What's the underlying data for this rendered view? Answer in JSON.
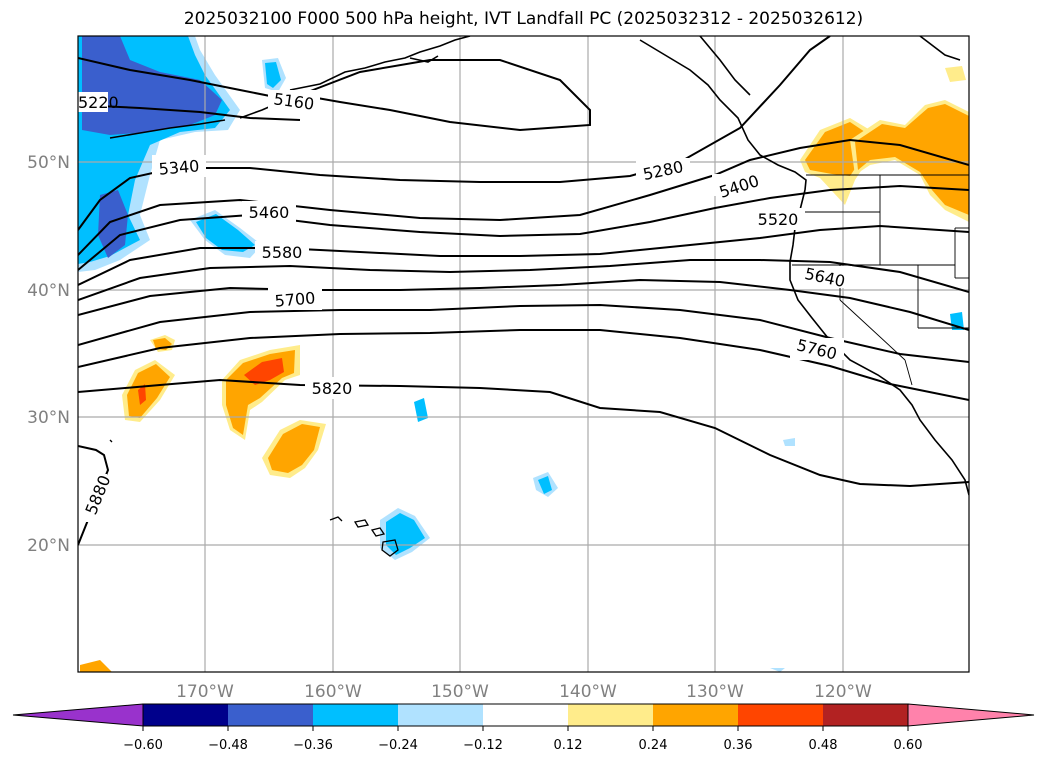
{
  "title": "2025032100 F000 500 hPa height, IVT Landfall PC (2025032312 - 2025032612)",
  "map": {
    "lat_labels": [
      "50°N",
      "40°N",
      "30°N",
      "20°N"
    ],
    "lon_labels": [
      "170°W",
      "160°W",
      "150°W",
      "140°W",
      "130°W",
      "120°W"
    ],
    "contour_labels": [
      "5160",
      "5220",
      "5280",
      "5340",
      "5400",
      "5460",
      "5520",
      "5580",
      "5640",
      "5700",
      "5760",
      "5820",
      "5880"
    ]
  },
  "colorbar": {
    "ticks": [
      "−0.60",
      "−0.48",
      "−0.36",
      "−0.24",
      "−0.12",
      "0.12",
      "0.24",
      "0.36",
      "0.48",
      "0.60"
    ],
    "colors": [
      "#9932cc",
      "#00008b",
      "#3a5fcd",
      "#00bfff",
      "#b0e2ff",
      "#ffffff",
      "#ffec8b",
      "#ffa500",
      "#ff4500",
      "#b22222",
      "#ff82ab"
    ]
  }
}
